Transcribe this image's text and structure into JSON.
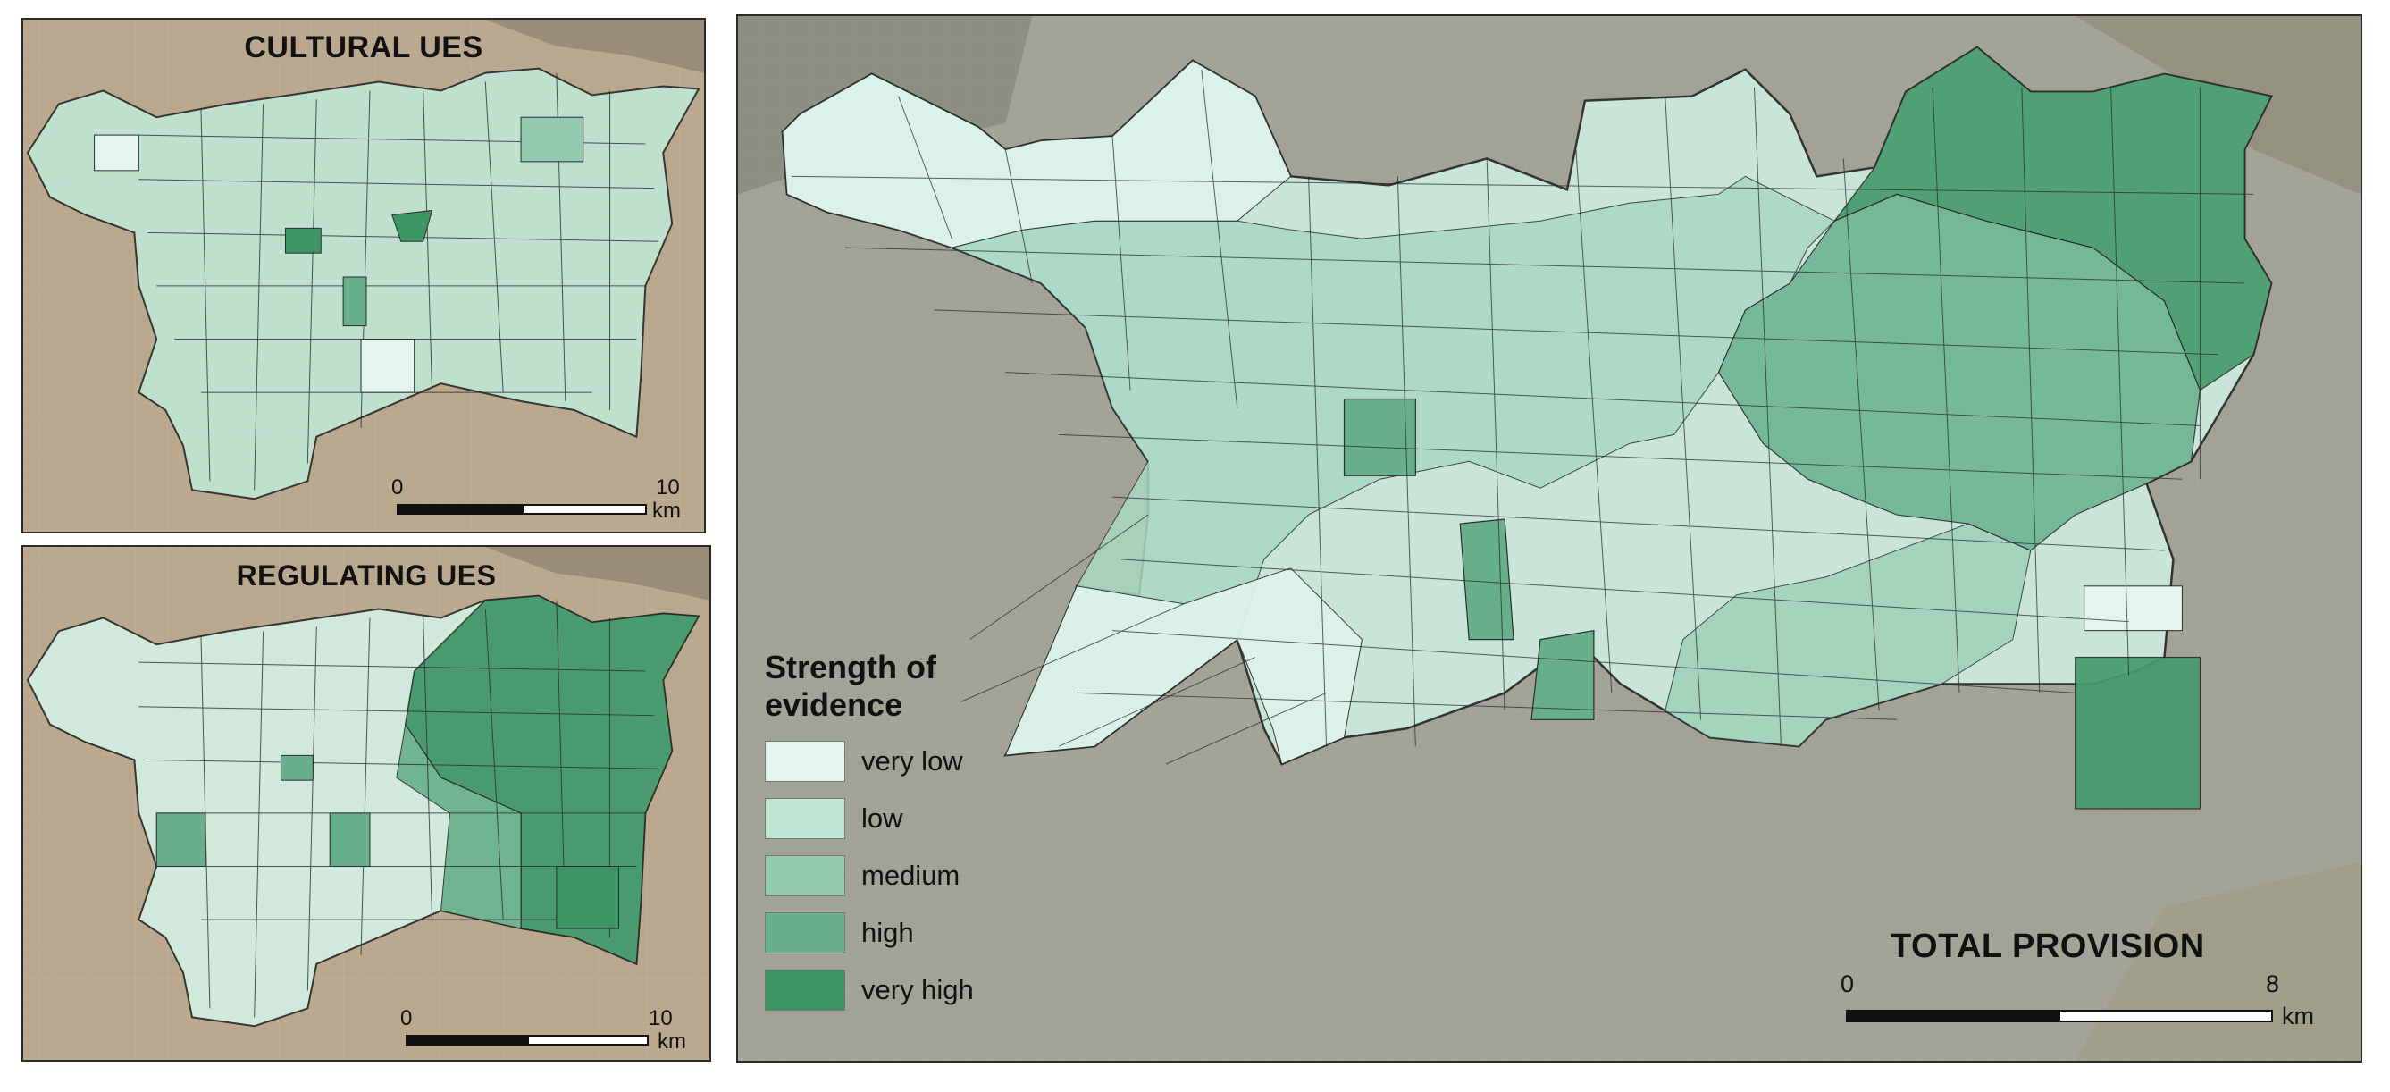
{
  "panels": {
    "cultural": {
      "title": "CULTURAL UES",
      "scale_start": "0",
      "scale_end": "10",
      "scale_unit": "km"
    },
    "regulating": {
      "title": "REGULATING UES",
      "scale_start": "0",
      "scale_end": "10",
      "scale_unit": "km"
    },
    "total": {
      "title": "TOTAL PROVISION",
      "scale_start": "0",
      "scale_end": "8",
      "scale_unit": "km"
    }
  },
  "legend": {
    "title_line1": "Strength of",
    "title_line2": "evidence",
    "items": [
      {
        "label": "very low",
        "color": "#e3f5ee"
      },
      {
        "label": "low",
        "color": "#bfe5d3"
      },
      {
        "label": "medium",
        "color": "#93cbb0"
      },
      {
        "label": "high",
        "color": "#68b08c"
      },
      {
        "label": "very high",
        "color": "#3f9466"
      }
    ]
  },
  "colors": {
    "satellite_tan": "#b6a489",
    "satellite_gray": "#9a9a92",
    "boundary": "#2b2b2b"
  }
}
